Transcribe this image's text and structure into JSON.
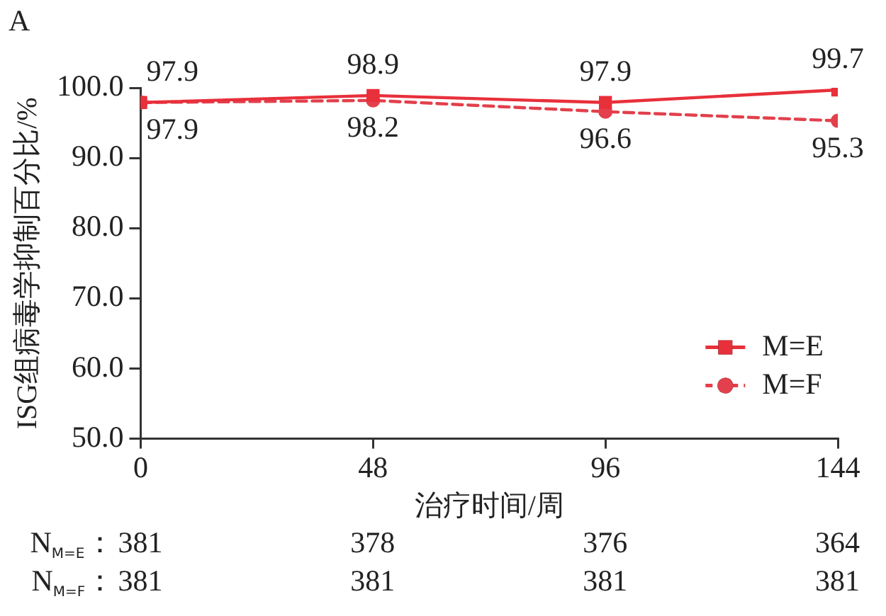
{
  "chart_data": {
    "type": "line",
    "title": "A",
    "xlabel": "治疗时间/周",
    "ylabel": "ISG组病毒学抑制百分比/%",
    "x": [
      0,
      48,
      96,
      144
    ],
    "series": [
      {
        "name": "M=E",
        "color": "#e8303b",
        "values": [
          97.9,
          98.9,
          97.9,
          99.7
        ],
        "marker": "square",
        "line_style": "solid"
      },
      {
        "name": "M=F",
        "color": "#e2404c",
        "values": [
          97.9,
          98.2,
          96.6,
          95.3
        ],
        "marker": "circle",
        "line_style": "dashed"
      }
    ],
    "xlim": [
      0,
      144
    ],
    "xticks": [
      0,
      48,
      96,
      144
    ],
    "ylim": [
      50,
      100
    ],
    "yticks": [
      {
        "value": 50,
        "label": "50.0"
      },
      {
        "value": 60,
        "label": "60.0"
      },
      {
        "value": 70,
        "label": "70.0"
      },
      {
        "value": 80,
        "label": "80.0"
      },
      {
        "value": 90,
        "label": "90.0"
      },
      {
        "value": 100,
        "label": "100.0"
      }
    ],
    "data_labels": true,
    "legend": "bottom right",
    "grid": false,
    "annotations": [
      "N$_{M=E}$：",
      "381",
      "378",
      "376",
      "364",
      "N$_{M=F}$：",
      "381",
      "381",
      "381",
      "381"
    ]
  }
}
